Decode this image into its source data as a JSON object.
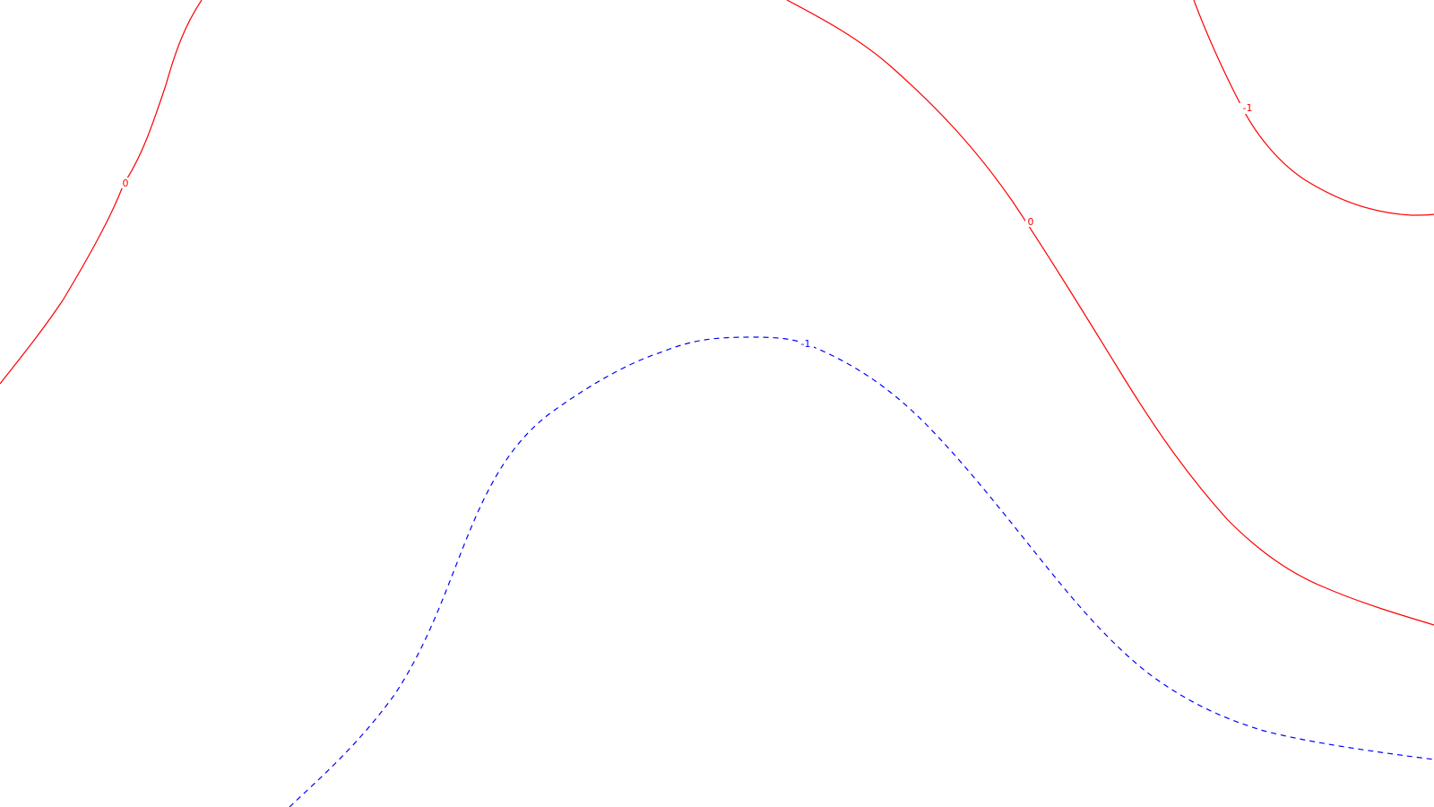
{
  "map": {
    "contours": [
      {
        "id": "left-zero",
        "label": "0",
        "style": "solid",
        "color": "#ff0000"
      },
      {
        "id": "center-zero",
        "label": "0",
        "style": "solid",
        "color": "#ff0000"
      },
      {
        "id": "top-right-minus-one",
        "label": "-1",
        "style": "solid",
        "color": "#ff0000"
      },
      {
        "id": "blue-dashed",
        "label": "-1",
        "style": "dashed",
        "color": "#0000ff"
      }
    ]
  }
}
